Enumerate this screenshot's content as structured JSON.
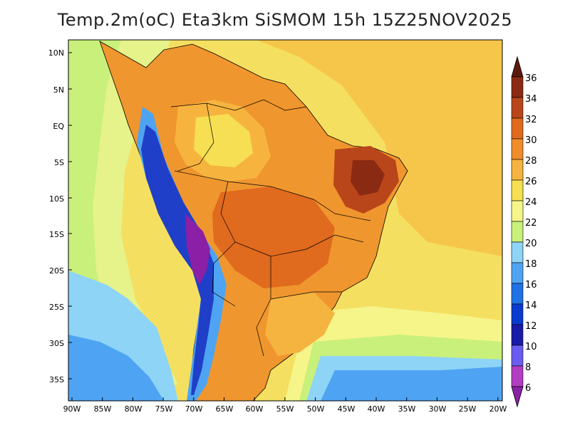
{
  "title": "Temp.2m(oC) Eta3km SiSMOM 15h 15Z25NOV2025",
  "map": {
    "lat_labels": [
      "10N",
      "5N",
      "EQ",
      "5S",
      "10S",
      "15S",
      "20S",
      "25S",
      "30S",
      "35S"
    ],
    "lon_labels": [
      "90W",
      "85W",
      "80W",
      "75W",
      "70W",
      "65W",
      "60W",
      "55W",
      "50W",
      "45W",
      "40W",
      "35W",
      "30W",
      "25W",
      "20W"
    ]
  },
  "colorbar": {
    "unit": "oC",
    "levels": [
      "6",
      "8",
      "10",
      "12",
      "14",
      "16",
      "18",
      "20",
      "22",
      "24",
      "26",
      "28",
      "30",
      "32",
      "34",
      "36"
    ],
    "colors": [
      "#8b1fa6",
      "#b23dc2",
      "#6a5cf0",
      "#1a1aa8",
      "#0a3bd0",
      "#1f72e6",
      "#4ea4f2",
      "#8ed4f7",
      "#c9f07a",
      "#f5f58a",
      "#f6df52",
      "#f5b43f",
      "#f08c2a",
      "#e06a1e",
      "#b9461a",
      "#8a2a12",
      "#5c1a0c"
    ]
  }
}
